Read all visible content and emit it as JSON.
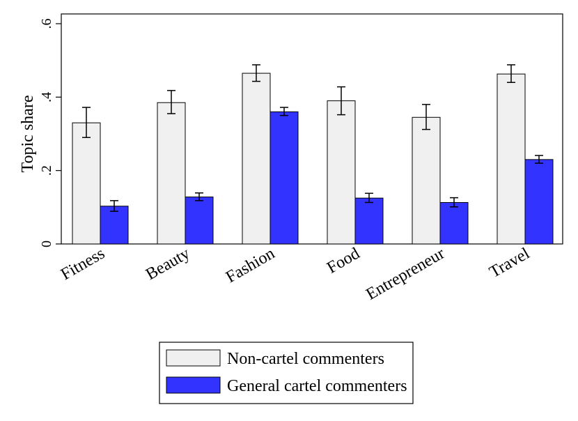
{
  "chart_data": {
    "type": "bar",
    "ylabel": "Topic share",
    "ylim": [
      0,
      0.6
    ],
    "yticks": [
      0,
      0.2,
      0.4,
      0.6
    ],
    "ytick_labels": [
      "0",
      ".2",
      ".4",
      ".6"
    ],
    "categories": [
      "Fitness",
      "Beauty",
      "Fashion",
      "Food",
      "Entrepreneur",
      "Travel"
    ],
    "series": [
      {
        "name": "Non-cartel commenters",
        "color": "#f0f0f0",
        "values": [
          0.33,
          0.385,
          0.465,
          0.39,
          0.345,
          0.463
        ],
        "ci_low": [
          0.29,
          0.355,
          0.443,
          0.352,
          0.312,
          0.44
        ],
        "ci_high": [
          0.372,
          0.418,
          0.488,
          0.428,
          0.38,
          0.488
        ]
      },
      {
        "name": "General cartel commenters",
        "color": "#3333ff",
        "values": [
          0.103,
          0.128,
          0.36,
          0.125,
          0.113,
          0.23
        ],
        "ci_low": [
          0.089,
          0.118,
          0.35,
          0.113,
          0.101,
          0.22
        ],
        "ci_high": [
          0.118,
          0.139,
          0.372,
          0.138,
          0.126,
          0.241
        ]
      }
    ],
    "legend_position": "bottom-center",
    "grid": false
  }
}
